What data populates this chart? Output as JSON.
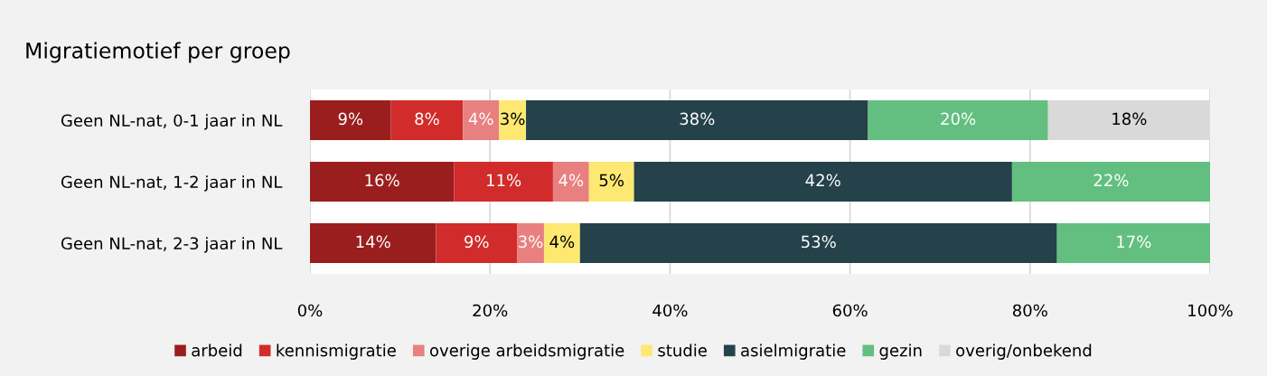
{
  "chart_data": {
    "type": "bar",
    "orientation": "horizontal",
    "stacked": true,
    "title": "Migratiemotief per groep",
    "categories": [
      "Geen NL-nat, 0-1 jaar in NL",
      "Geen NL-nat, 1-2 jaar in NL",
      "Geen NL-nat, 2-3 jaar in NL"
    ],
    "series": [
      {
        "name": "arbeid",
        "color": "#9b1e1e",
        "values": [
          9,
          16,
          14
        ],
        "value_labels": [
          "9%",
          "16%",
          "14%"
        ]
      },
      {
        "name": "kennismigratie",
        "color": "#d22b2b",
        "values": [
          8,
          11,
          9
        ],
        "value_labels": [
          "8%",
          "11%",
          "9%"
        ]
      },
      {
        "name": "overige arbeidsmigratie",
        "color": "#e88080",
        "values": [
          4,
          4,
          3
        ],
        "value_labels": [
          "4%",
          "4%",
          "3%"
        ]
      },
      {
        "name": "studie",
        "color": "#fde872",
        "values": [
          3,
          5,
          4
        ],
        "value_labels": [
          "3%",
          "5%",
          "4%"
        ]
      },
      {
        "name": "asielmigratie",
        "color": "#25414a",
        "values": [
          38,
          42,
          53
        ],
        "value_labels": [
          "38%",
          "42%",
          "53%"
        ]
      },
      {
        "name": "gezin",
        "color": "#63bf80",
        "values": [
          20,
          22,
          17
        ],
        "value_labels": [
          "20%",
          "22%",
          "17%"
        ]
      },
      {
        "name": "overig/onbekend",
        "color": "#d9d9d9",
        "values": [
          18,
          null,
          null
        ],
        "value_labels": [
          "18%",
          null,
          null
        ]
      }
    ],
    "xlim": [
      0,
      100
    ],
    "xticks": [
      {
        "value": 0,
        "label": "0%"
      },
      {
        "value": 20,
        "label": "20%"
      },
      {
        "value": 40,
        "label": "40%"
      },
      {
        "value": 60,
        "label": "60%"
      },
      {
        "value": 80,
        "label": "80%"
      },
      {
        "value": 100,
        "label": "100%"
      }
    ],
    "grid": "x",
    "legend": "bottom"
  }
}
